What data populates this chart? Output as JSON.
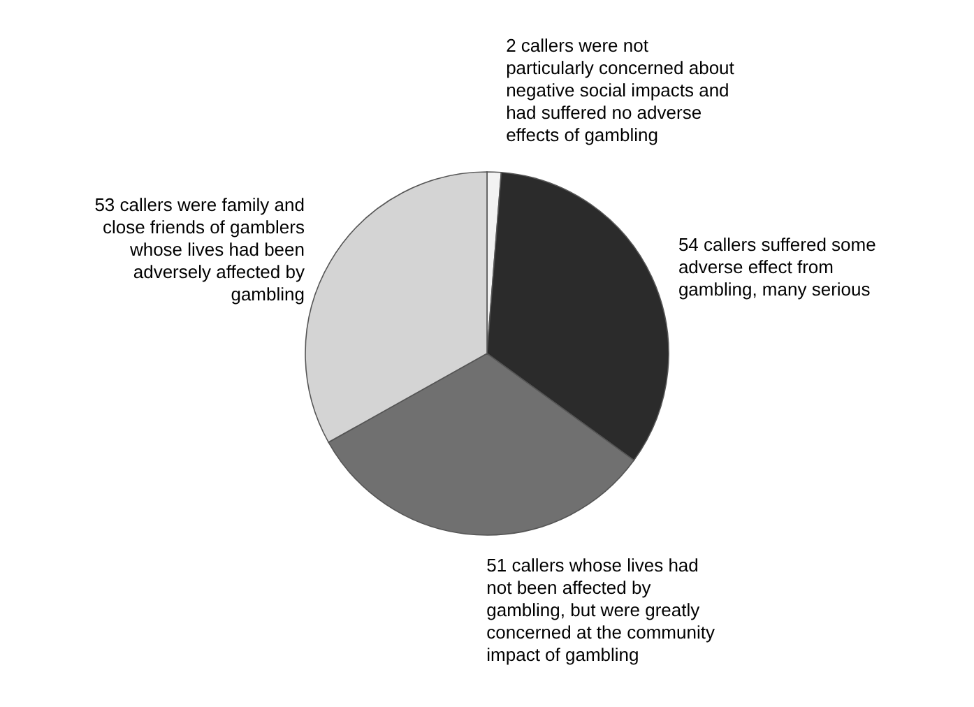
{
  "chart_data": {
    "type": "pie",
    "categories": [
      "2 callers were not particularly concerned about negative social impacts and had suffered no adverse effects of gambling",
      "54 callers suffered some adverse effect from gambling, many serious",
      "51 callers whose lives had not been affected by gambling, but were greatly concerned at the community impact of gambling",
      "53 callers were family and close friends of gamblers whose lives had been adversely affected by gambling"
    ],
    "values": [
      2,
      54,
      51,
      53
    ],
    "colors": [
      "#f2f2f2",
      "#2b2b2b",
      "#707070",
      "#d4d4d4"
    ]
  }
}
